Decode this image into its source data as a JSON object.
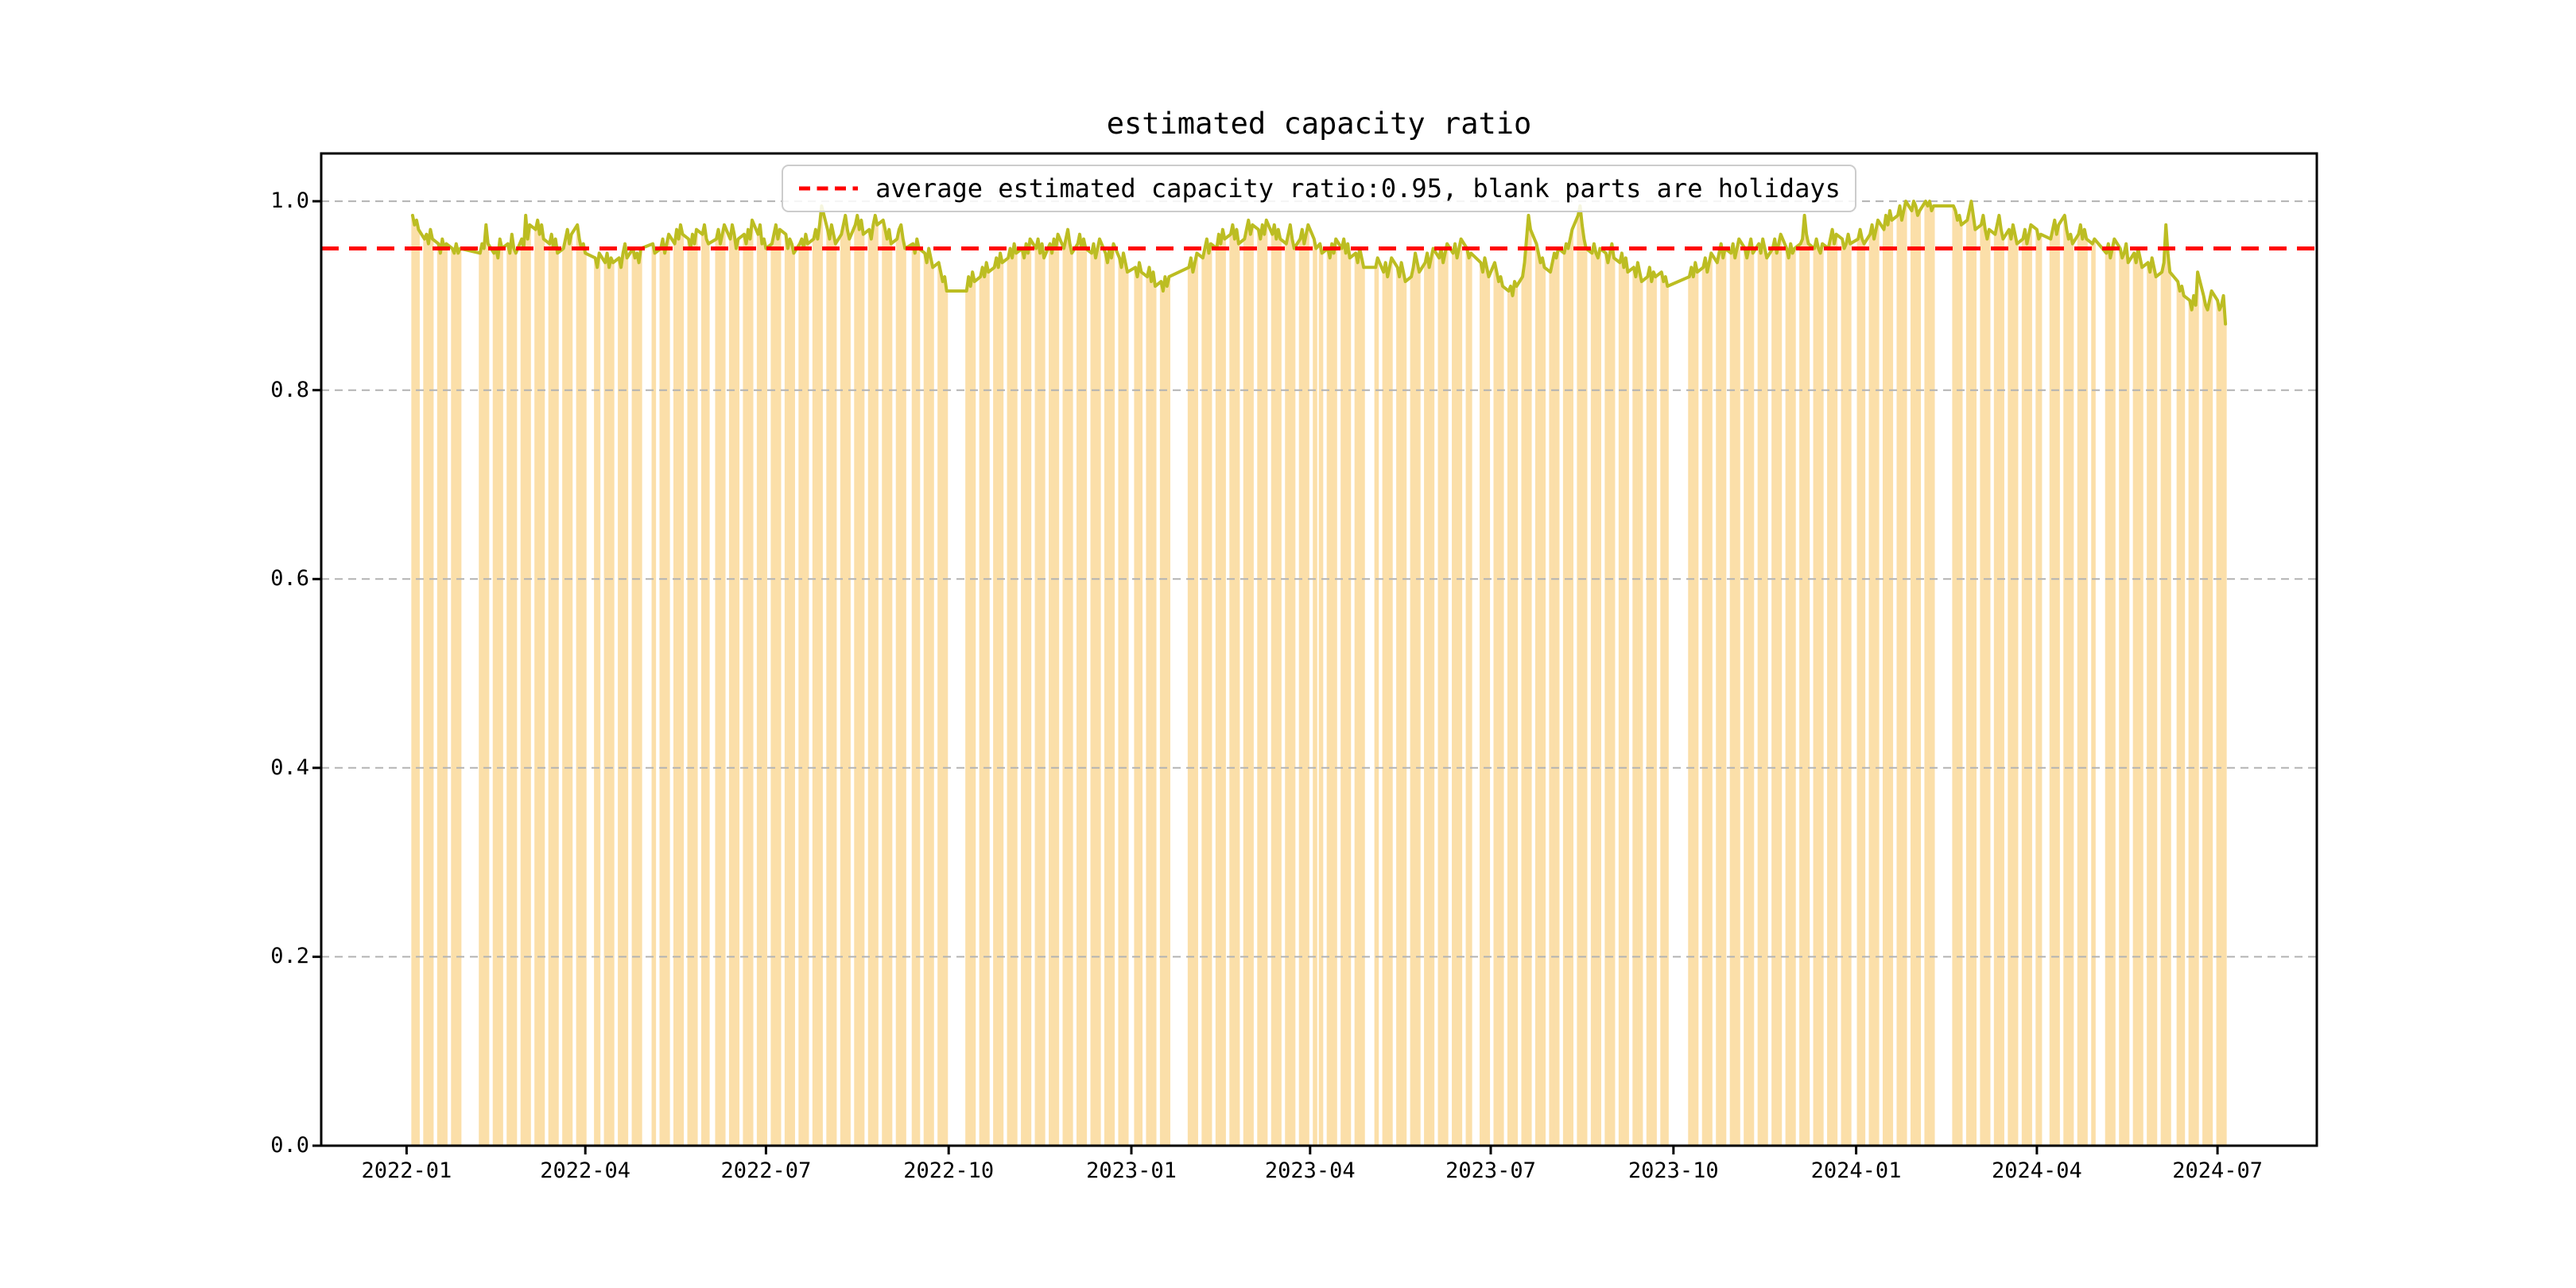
{
  "figure": {
    "title": "estimated capacity ratio"
  },
  "legend": {
    "label": "average estimated capacity ratio:0.95, blank parts are holidays"
  },
  "colors": {
    "bar": "#FBDFA9",
    "line": "#BCBD22",
    "average": "#FF0000",
    "grid": "#B3B3B3",
    "spine": "#000000",
    "legend_border": "#CCCCCC"
  },
  "chart_data": {
    "type": "bar+line",
    "title": "estimated capacity ratio",
    "average_line": 0.95,
    "legend_position": "upper center",
    "grid": "dashed horizontal at yticks",
    "x_unit": "days since 2022-01-01; bars on workdays only, blank gaps are weekends/holidays",
    "xlim": [
      -43,
      962
    ],
    "ylim": [
      0,
      1.0506
    ],
    "yticks": [
      {
        "v": 0.0,
        "label": "0.0"
      },
      {
        "v": 0.2,
        "label": "0.2"
      },
      {
        "v": 0.4,
        "label": "0.4"
      },
      {
        "v": 0.6,
        "label": "0.6"
      },
      {
        "v": 0.8,
        "label": "0.8"
      },
      {
        "v": 1.0,
        "label": "1.0"
      }
    ],
    "xticks": [
      {
        "offset": 0,
        "label": "2022-01"
      },
      {
        "offset": 90,
        "label": "2022-04"
      },
      {
        "offset": 181,
        "label": "2022-07"
      },
      {
        "offset": 273,
        "label": "2022-10"
      },
      {
        "offset": 365,
        "label": "2023-01"
      },
      {
        "offset": 455,
        "label": "2023-04"
      },
      {
        "offset": 546,
        "label": "2023-07"
      },
      {
        "offset": 638,
        "label": "2023-10"
      },
      {
        "offset": 730,
        "label": "2024-01"
      },
      {
        "offset": 821,
        "label": "2024-04"
      },
      {
        "offset": 912,
        "label": "2024-07"
      }
    ],
    "segments_format": "[start_day_offset, [daily estimated capacity ratio values, one bar per workday]]",
    "segments": [
      [
        3,
        [
          0.985,
          0.975,
          0.98,
          0.97
        ]
      ],
      [
        9,
        [
          0.96,
          0.965,
          0.955,
          0.97,
          0.96
        ]
      ],
      [
        16,
        [
          0.955,
          0.945,
          0.96,
          0.95,
          0.955
        ]
      ],
      [
        23,
        [
          0.95,
          0.945,
          0.955,
          0.945,
          0.95
        ]
      ],
      [
        37,
        [
          0.945,
          0.955,
          0.95,
          0.975,
          0.955
        ]
      ],
      [
        44,
        [
          0.945,
          0.95,
          0.94,
          0.96,
          0.95
        ]
      ],
      [
        51,
        [
          0.955,
          0.945,
          0.965,
          0.95,
          0.945
        ]
      ],
      [
        58,
        [
          0.96,
          0.95,
          0.985,
          0.96,
          0.975
        ]
      ],
      [
        65,
        [
          0.97,
          0.98,
          0.965,
          0.975,
          0.96
        ]
      ],
      [
        72,
        [
          0.955,
          0.965,
          0.95,
          0.96,
          0.945
        ]
      ],
      [
        79,
        [
          0.95,
          0.96,
          0.97,
          0.955,
          0.965
        ]
      ],
      [
        86,
        [
          0.975,
          0.96,
          0.95,
          0.955,
          0.945
        ]
      ],
      [
        95,
        [
          0.94,
          0.93,
          0.945
        ]
      ],
      [
        100,
        [
          0.935,
          0.945,
          0.93,
          0.94,
          0.935
        ]
      ],
      [
        107,
        [
          0.94,
          0.93,
          0.945,
          0.955,
          0.94
        ]
      ],
      [
        114,
        [
          0.95,
          0.94,
          0.945,
          0.935,
          0.95
        ]
      ],
      [
        124,
        [
          0.955,
          0.945
        ]
      ],
      [
        128,
        [
          0.95,
          0.96,
          0.945,
          0.955,
          0.965
        ]
      ],
      [
        135,
        [
          0.955,
          0.97,
          0.96,
          0.975,
          0.965
        ]
      ],
      [
        142,
        [
          0.96,
          0.95,
          0.965,
          0.955,
          0.97
        ]
      ],
      [
        149,
        [
          0.965,
          0.975,
          0.96,
          0.955
        ]
      ],
      [
        156,
        [
          0.96,
          0.97,
          0.955,
          0.965,
          0.975
        ]
      ],
      [
        163,
        [
          0.96,
          0.975,
          0.965,
          0.95,
          0.96
        ]
      ],
      [
        170,
        [
          0.965,
          0.955,
          0.97,
          0.96,
          0.98
        ]
      ],
      [
        177,
        [
          0.965,
          0.975,
          0.955,
          0.96,
          0.95
        ]
      ],
      [
        184,
        [
          0.955,
          0.965,
          0.975,
          0.96,
          0.97
        ]
      ],
      [
        191,
        [
          0.965,
          0.95,
          0.96,
          0.955,
          0.945
        ]
      ],
      [
        198,
        [
          0.955,
          0.96,
          0.95,
          0.965,
          0.955
        ]
      ],
      [
        205,
        [
          0.96,
          0.97,
          0.96,
          0.975,
          0.995
        ]
      ],
      [
        212,
        [
          0.97,
          0.96,
          0.975,
          0.965,
          0.955
        ]
      ],
      [
        219,
        [
          0.965,
          0.975,
          0.985,
          0.97,
          0.96
        ]
      ],
      [
        226,
        [
          0.975,
          0.985,
          0.97,
          0.98,
          0.965
        ]
      ],
      [
        233,
        [
          0.97,
          0.96,
          0.975,
          0.985,
          0.975
        ]
      ],
      [
        240,
        [
          0.98,
          0.97,
          0.96,
          0.97,
          0.955
        ]
      ],
      [
        247,
        [
          0.96,
          0.97,
          0.975,
          0.96,
          0.95
        ]
      ],
      [
        255,
        [
          0.955,
          0.945,
          0.96,
          0.95
        ]
      ],
      [
        261,
        [
          0.945,
          0.935,
          0.95,
          0.94,
          0.93
        ]
      ],
      [
        268,
        [
          0.935,
          0.925,
          0.915,
          0.92,
          0.905
        ]
      ],
      [
        282,
        [
          0.905,
          0.92,
          0.91,
          0.925,
          0.915
        ]
      ],
      [
        289,
        [
          0.92,
          0.93,
          0.92,
          0.935,
          0.925
        ]
      ],
      [
        296,
        [
          0.93,
          0.94,
          0.93,
          0.945,
          0.935
        ]
      ],
      [
        303,
        [
          0.94,
          0.95,
          0.94,
          0.955,
          0.945
        ]
      ],
      [
        310,
        [
          0.95,
          0.94,
          0.955,
          0.945,
          0.96
        ]
      ],
      [
        317,
        [
          0.95,
          0.96,
          0.945,
          0.955,
          0.94
        ]
      ],
      [
        324,
        [
          0.955,
          0.945,
          0.96,
          0.95,
          0.965
        ]
      ],
      [
        331,
        [
          0.95,
          0.96,
          0.97,
          0.955,
          0.945
        ]
      ],
      [
        338,
        [
          0.955,
          0.965,
          0.95,
          0.96,
          0.95
        ]
      ],
      [
        345,
        [
          0.945,
          0.955,
          0.94,
          0.95,
          0.96
        ]
      ],
      [
        352,
        [
          0.945,
          0.935,
          0.95,
          0.94,
          0.955
        ]
      ],
      [
        359,
        [
          0.94,
          0.93,
          0.945,
          0.935,
          0.925
        ]
      ],
      [
        367,
        [
          0.93,
          0.92,
          0.935,
          0.925
        ]
      ],
      [
        373,
        [
          0.92,
          0.93,
          0.915,
          0.925,
          0.91
        ]
      ],
      [
        380,
        [
          0.915,
          0.905,
          0.92,
          0.91,
          0.92
        ]
      ],
      [
        394,
        [
          0.93,
          0.94,
          0.925,
          0.935,
          0.945
        ]
      ],
      [
        401,
        [
          0.94,
          0.95,
          0.96,
          0.945,
          0.955
        ]
      ],
      [
        408,
        [
          0.95,
          0.965,
          0.955,
          0.97,
          0.96
        ]
      ],
      [
        415,
        [
          0.965,
          0.975,
          0.96,
          0.97,
          0.955
        ]
      ],
      [
        422,
        [
          0.96,
          0.97,
          0.98,
          0.965,
          0.975
        ]
      ],
      [
        429,
        [
          0.97,
          0.96,
          0.975,
          0.965,
          0.98
        ]
      ],
      [
        436,
        [
          0.965,
          0.975,
          0.96,
          0.97,
          0.96
        ]
      ],
      [
        443,
        [
          0.955,
          0.965,
          0.975,
          0.96,
          0.95
        ]
      ],
      [
        450,
        [
          0.96,
          0.97,
          0.955,
          0.965,
          0.975
        ]
      ],
      [
        457,
        [
          0.96,
          0.95
        ]
      ],
      [
        460,
        [
          0.955,
          0.945
        ]
      ],
      [
        464,
        [
          0.95,
          0.94,
          0.955,
          0.945,
          0.96
        ]
      ],
      [
        471,
        [
          0.95,
          0.96,
          0.945,
          0.955,
          0.94
        ]
      ],
      [
        478,
        [
          0.945,
          0.935,
          0.95,
          0.94,
          0.93
        ]
      ],
      [
        488,
        [
          0.93,
          0.94
        ]
      ],
      [
        492,
        [
          0.925,
          0.935,
          0.92,
          0.93,
          0.94
        ]
      ],
      [
        499,
        [
          0.93,
          0.92,
          0.935,
          0.925,
          0.915
        ]
      ],
      [
        506,
        [
          0.92,
          0.93,
          0.945,
          0.935,
          0.925
        ]
      ],
      [
        513,
        [
          0.935,
          0.945,
          0.93,
          0.94,
          0.95
        ]
      ],
      [
        520,
        [
          0.94,
          0.95,
          0.935,
          0.945,
          0.955
        ]
      ],
      [
        527,
        [
          0.945,
          0.955,
          0.94,
          0.95,
          0.96
        ]
      ],
      [
        534,
        [
          0.95,
          0.94,
          0.945
        ]
      ],
      [
        541,
        [
          0.935,
          0.925,
          0.94,
          0.93,
          0.92
        ]
      ],
      [
        548,
        [
          0.935,
          0.925,
          0.915,
          0.92,
          0.91
        ]
      ],
      [
        555,
        [
          0.905,
          0.91,
          0.9,
          0.915,
          0.91
        ]
      ],
      [
        562,
        [
          0.92,
          0.935,
          0.96,
          0.985,
          0.97
        ]
      ],
      [
        569,
        [
          0.955,
          0.945,
          0.935,
          0.94,
          0.93
        ]
      ],
      [
        576,
        [
          0.925,
          0.935,
          0.945,
          0.94,
          0.95
        ]
      ],
      [
        583,
        [
          0.945,
          0.955,
          0.95,
          0.96,
          0.97
        ]
      ],
      [
        590,
        [
          0.985,
          0.995,
          0.975,
          0.96,
          0.95
        ]
      ],
      [
        597,
        [
          0.945,
          0.955,
          0.945,
          0.94,
          0.95
        ]
      ],
      [
        604,
        [
          0.945,
          0.935,
          0.945,
          0.955,
          0.94
        ]
      ],
      [
        611,
        [
          0.935,
          0.945,
          0.93,
          0.94,
          0.925
        ]
      ],
      [
        618,
        [
          0.93,
          0.92,
          0.935,
          0.925,
          0.915
        ]
      ],
      [
        625,
        [
          0.92,
          0.93,
          0.915,
          0.925,
          0.92
        ]
      ],
      [
        632,
        [
          0.925,
          0.915,
          0.92,
          0.91
        ]
      ],
      [
        646,
        [
          0.92,
          0.93,
          0.92,
          0.935,
          0.925
        ]
      ],
      [
        653,
        [
          0.93,
          0.94,
          0.925,
          0.935,
          0.945
        ]
      ],
      [
        660,
        [
          0.935,
          0.945,
          0.955,
          0.94,
          0.95
        ]
      ],
      [
        667,
        [
          0.945,
          0.955,
          0.94,
          0.95,
          0.96
        ]
      ],
      [
        674,
        [
          0.95,
          0.94,
          0.95,
          0.96,
          0.945
        ]
      ],
      [
        681,
        [
          0.955,
          0.945,
          0.96,
          0.95,
          0.94
        ]
      ],
      [
        688,
        [
          0.95,
          0.96,
          0.945,
          0.955,
          0.965
        ]
      ],
      [
        695,
        [
          0.95,
          0.94,
          0.955,
          0.945,
          0.95
        ]
      ],
      [
        702,
        [
          0.955,
          0.96,
          0.985,
          0.965,
          0.955
        ]
      ],
      [
        709,
        [
          0.95,
          0.96,
          0.95,
          0.945,
          0.955
        ]
      ],
      [
        716,
        [
          0.95,
          0.96,
          0.97,
          0.955,
          0.965
        ]
      ],
      [
        723,
        [
          0.96,
          0.95,
          0.955,
          0.965,
          0.955
        ]
      ],
      [
        731,
        [
          0.96,
          0.97,
          0.96,
          0.955
        ]
      ],
      [
        737,
        [
          0.965,
          0.975,
          0.96,
          0.97,
          0.98
        ]
      ],
      [
        744,
        [
          0.97,
          0.985,
          0.975,
          0.99,
          0.98
        ]
      ],
      [
        751,
        [
          0.985,
          0.995,
          0.98,
          0.99,
          1.0
        ]
      ],
      [
        758,
        [
          0.99,
          1.0,
          0.995,
          0.985,
          0.99
        ]
      ],
      [
        765,
        [
          1.0,
          0.995,
          1.0,
          0.99,
          0.995
        ]
      ],
      [
        779,
        [
          0.995,
          0.99,
          0.98,
          0.985,
          0.975
        ]
      ],
      [
        786,
        [
          0.98,
          0.99,
          1.0,
          0.985,
          0.97
        ]
      ],
      [
        793,
        [
          0.975,
          0.985,
          0.97,
          0.96,
          0.97
        ]
      ],
      [
        800,
        [
          0.965,
          0.975,
          0.985,
          0.97,
          0.96
        ]
      ],
      [
        807,
        [
          0.97,
          0.96,
          0.975,
          0.965,
          0.955
        ]
      ],
      [
        814,
        [
          0.96,
          0.97,
          0.955,
          0.965,
          0.975
        ]
      ],
      [
        821,
        [
          0.97,
          0.96,
          0.965
        ]
      ],
      [
        828,
        [
          0.96,
          0.97,
          0.98,
          0.965,
          0.975
        ]
      ],
      [
        835,
        [
          0.985,
          0.97,
          0.96,
          0.965,
          0.955
        ]
      ],
      [
        842,
        [
          0.965,
          0.975,
          0.96,
          0.97,
          0.96
        ]
      ],
      [
        849,
        [
          0.955,
          0.96
        ]
      ],
      [
        856,
        [
          0.945,
          0.955,
          0.94,
          0.95,
          0.96
        ]
      ],
      [
        863,
        [
          0.95,
          0.94,
          0.945,
          0.955,
          0.935
        ]
      ],
      [
        870,
        [
          0.945,
          0.935,
          0.95,
          0.94,
          0.93
        ]
      ],
      [
        877,
        [
          0.935,
          0.925,
          0.94,
          0.93,
          0.92
        ]
      ],
      [
        884,
        [
          0.925,
          0.935,
          0.975,
          0.945,
          0.925
        ]
      ],
      [
        892,
        [
          0.915,
          0.905,
          0.91,
          0.9
        ]
      ],
      [
        898,
        [
          0.895,
          0.885,
          0.9,
          0.89,
          0.925
        ]
      ],
      [
        905,
        [
          0.9,
          0.89,
          0.885,
          0.895,
          0.905
        ]
      ],
      [
        912,
        [
          0.895,
          0.885,
          0.89,
          0.9,
          0.87
        ]
      ]
    ]
  }
}
